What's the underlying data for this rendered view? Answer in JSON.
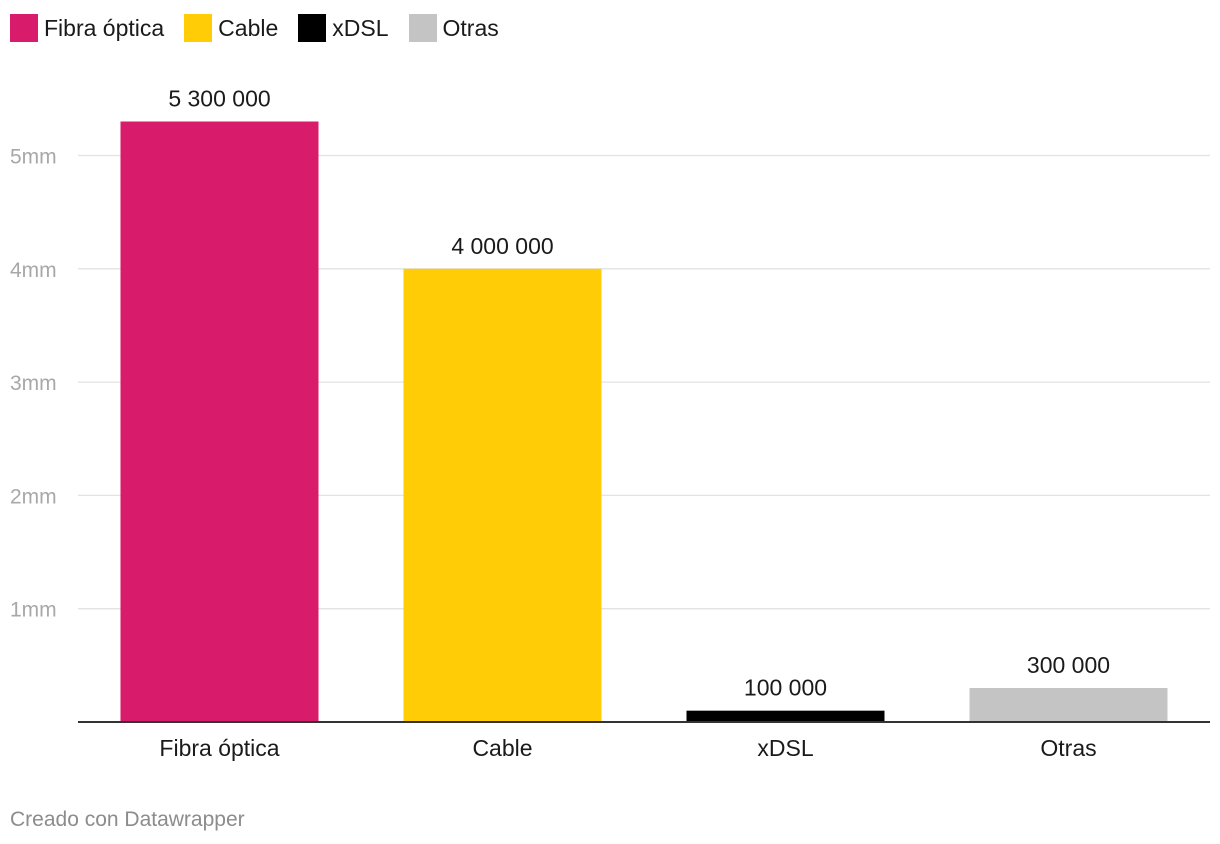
{
  "chart_data": {
    "type": "bar",
    "title": "",
    "xlabel": "",
    "ylabel": "",
    "categories": [
      "Fibra óptica",
      "Cable",
      "xDSL",
      "Otras"
    ],
    "values": [
      5300000,
      4000000,
      100000,
      300000
    ],
    "value_labels": [
      "5 300 000",
      "4 000 000",
      "100 000",
      "300 000"
    ],
    "colors": [
      "#d81b6a",
      "#ffcc05",
      "#000000",
      "#c4c4c4"
    ],
    "ylim": [
      0,
      5500000
    ],
    "yticks": [
      1000000,
      2000000,
      3000000,
      4000000,
      5000000
    ],
    "ytick_labels": [
      "1mm",
      "2mm",
      "3mm",
      "4mm",
      "5mm"
    ],
    "grid": true,
    "legend": {
      "position": "top-left",
      "entries": [
        {
          "label": "Fibra óptica",
          "color": "#d81b6a"
        },
        {
          "label": "Cable",
          "color": "#ffcc05"
        },
        {
          "label": "xDSL",
          "color": "#000000"
        },
        {
          "label": "Otras",
          "color": "#c4c4c4"
        }
      ]
    }
  },
  "footer": {
    "credit": "Creado con Datawrapper"
  }
}
